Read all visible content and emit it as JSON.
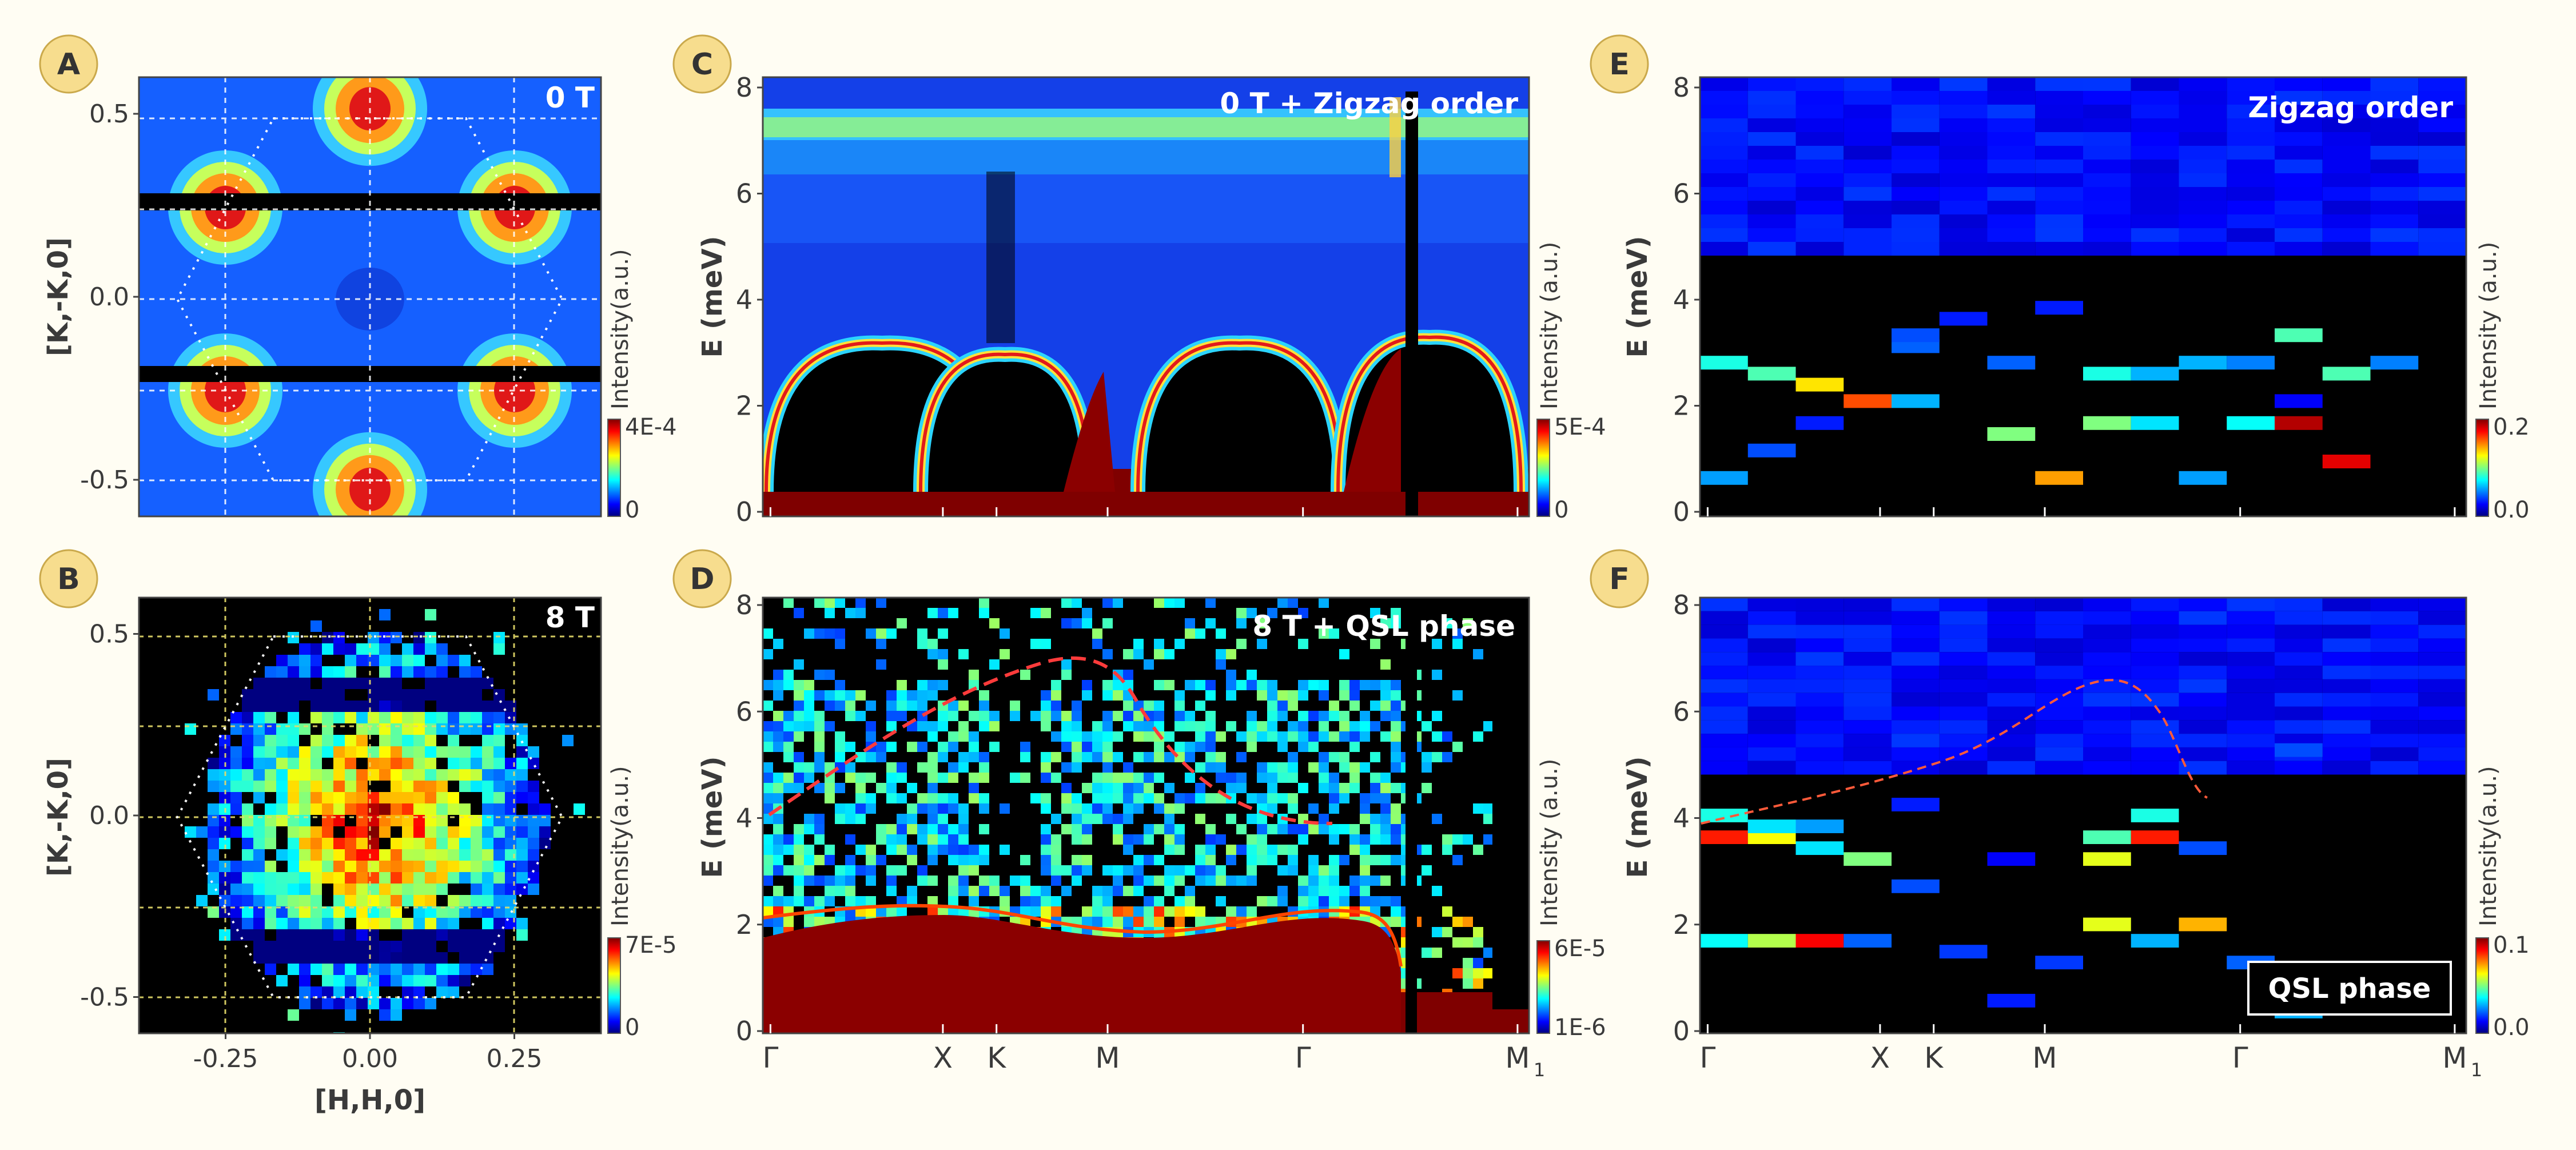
{
  "colors": {
    "background": "#fffdf3",
    "panel_letter_circle": "#f7dd8e",
    "fit_curve": "#ff3b3b",
    "text": "#3a3a3a",
    "colormap": "jet"
  },
  "chart_data": [
    {
      "panel": "A",
      "type": "heatmap",
      "title": "0 T",
      "xlabel": "",
      "ylabel": "[K,-K,0]",
      "xlim": [
        -0.4,
        0.4
      ],
      "ylim": [
        -0.6,
        0.6
      ],
      "xticks": [],
      "yticks": [
        {
          "v": 0.5,
          "label": "0.5"
        },
        {
          "v": 0.0,
          "label": "0.0"
        },
        {
          "v": -0.5,
          "label": "-0.5"
        }
      ],
      "colorbar": {
        "label": "Intensity(a.u.)",
        "max": "4E-4",
        "min": "0"
      }
    },
    {
      "panel": "B",
      "type": "heatmap",
      "title": "8 T",
      "xlabel": "[H,H,0]",
      "ylabel": "[K,-K,0]",
      "xlim": [
        -0.4,
        0.4
      ],
      "ylim": [
        -0.6,
        0.6
      ],
      "xticks": [
        {
          "v": -0.25,
          "label": "-0.25"
        },
        {
          "v": 0.0,
          "label": "0.00"
        },
        {
          "v": 0.25,
          "label": "0.25"
        }
      ],
      "yticks": [
        {
          "v": 0.5,
          "label": "0.5"
        },
        {
          "v": 0.0,
          "label": "0.0"
        },
        {
          "v": -0.5,
          "label": "-0.5"
        }
      ],
      "colorbar": {
        "label": "Intensity(a.u.)",
        "max": "7E-5",
        "min": "0"
      }
    },
    {
      "panel": "C",
      "type": "heatmap",
      "title": "0 T + Zigzag order",
      "xlabel": "",
      "ylabel": "E (meV)",
      "ylim": [
        0,
        8
      ],
      "yticks": [
        "0",
        "2",
        "4",
        "6",
        "8"
      ],
      "path_labels": [],
      "colorbar": {
        "label": "Intensity (a.u.)",
        "max": "5E-4",
        "min": "0"
      }
    },
    {
      "panel": "D",
      "type": "heatmap",
      "title": "8 T + QSL phase",
      "xlabel": "",
      "ylabel": "E (meV)",
      "ylim": [
        0,
        8
      ],
      "yticks": [
        "0",
        "2",
        "4",
        "6",
        "8"
      ],
      "path_labels": [
        "Γ",
        "X",
        "K",
        "M",
        "Γ",
        "M",
        "1"
      ],
      "colorbar": {
        "label": "Intensity (a.u.)",
        "max": "6E-5",
        "min": "1E-6"
      }
    },
    {
      "panel": "E",
      "type": "heatmap",
      "title": "Zigzag order",
      "xlabel": "",
      "ylabel": "E (meV)",
      "ylim": [
        0,
        8
      ],
      "yticks": [
        "0",
        "2",
        "4",
        "6",
        "8"
      ],
      "path_labels": [],
      "colorbar": {
        "label": "Intensity (a.u.)",
        "max": "0.2",
        "min": "0.0"
      }
    },
    {
      "panel": "F",
      "type": "heatmap",
      "title": "",
      "legend_box": "QSL phase",
      "xlabel": "",
      "ylabel": "E (meV)",
      "ylim": [
        0,
        8
      ],
      "yticks": [
        "0",
        "2",
        "4",
        "6",
        "8"
      ],
      "path_labels": [
        "Γ",
        "X",
        "K",
        "M",
        "Γ",
        "M",
        "1"
      ],
      "colorbar": {
        "label": "Intensity(a.u.)",
        "max": "0.1",
        "min": "0.0"
      }
    }
  ]
}
